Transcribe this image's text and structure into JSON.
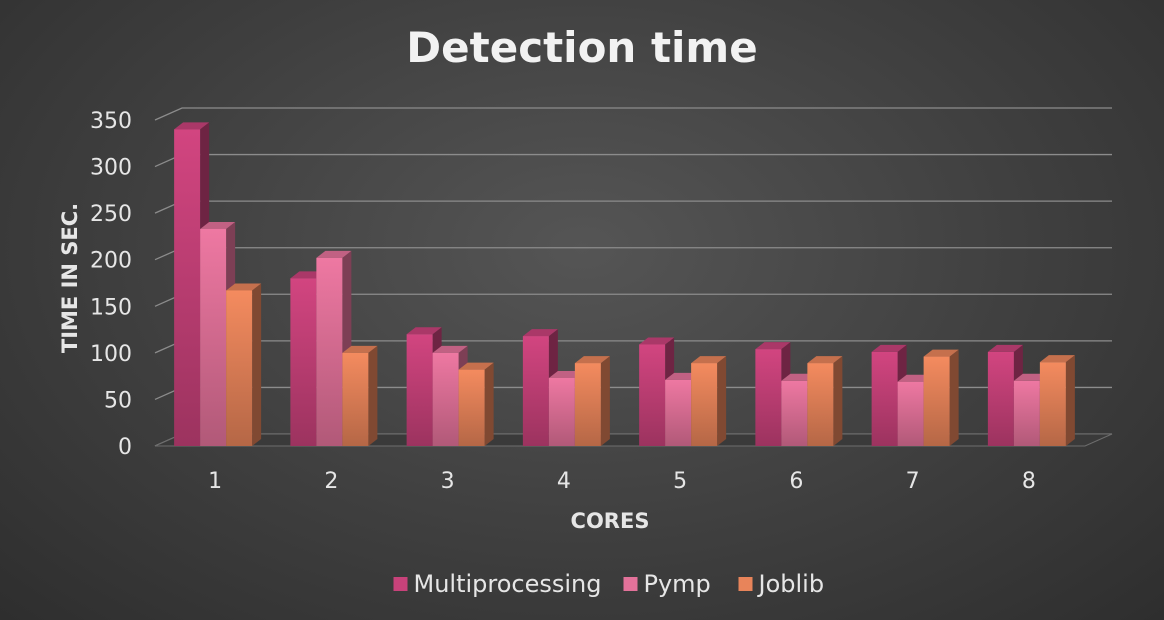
{
  "chart_data": {
    "type": "bar",
    "title": "Detection time",
    "xlabel": "CORES",
    "ylabel": "TIME IN SEC.",
    "categories": [
      "1",
      "2",
      "3",
      "4",
      "5",
      "6",
      "7",
      "8"
    ],
    "ylim": [
      0,
      350
    ],
    "yticks": [
      "0",
      "50",
      "100",
      "150",
      "200",
      "250",
      "300",
      "350"
    ],
    "grid": true,
    "legend_position": "bottom",
    "series": [
      {
        "name": "Multiprocessing",
        "color": "#c8427a",
        "values": [
          340,
          180,
          120,
          118,
          109,
          104,
          101,
          101
        ]
      },
      {
        "name": "Pymp",
        "color": "#e3729a",
        "values": [
          233,
          202,
          100,
          73,
          71,
          70,
          69,
          70
        ]
      },
      {
        "name": "Joblib",
        "color": "#e8845a",
        "values": [
          167,
          100,
          82,
          89,
          89,
          89,
          96,
          90
        ]
      }
    ]
  }
}
